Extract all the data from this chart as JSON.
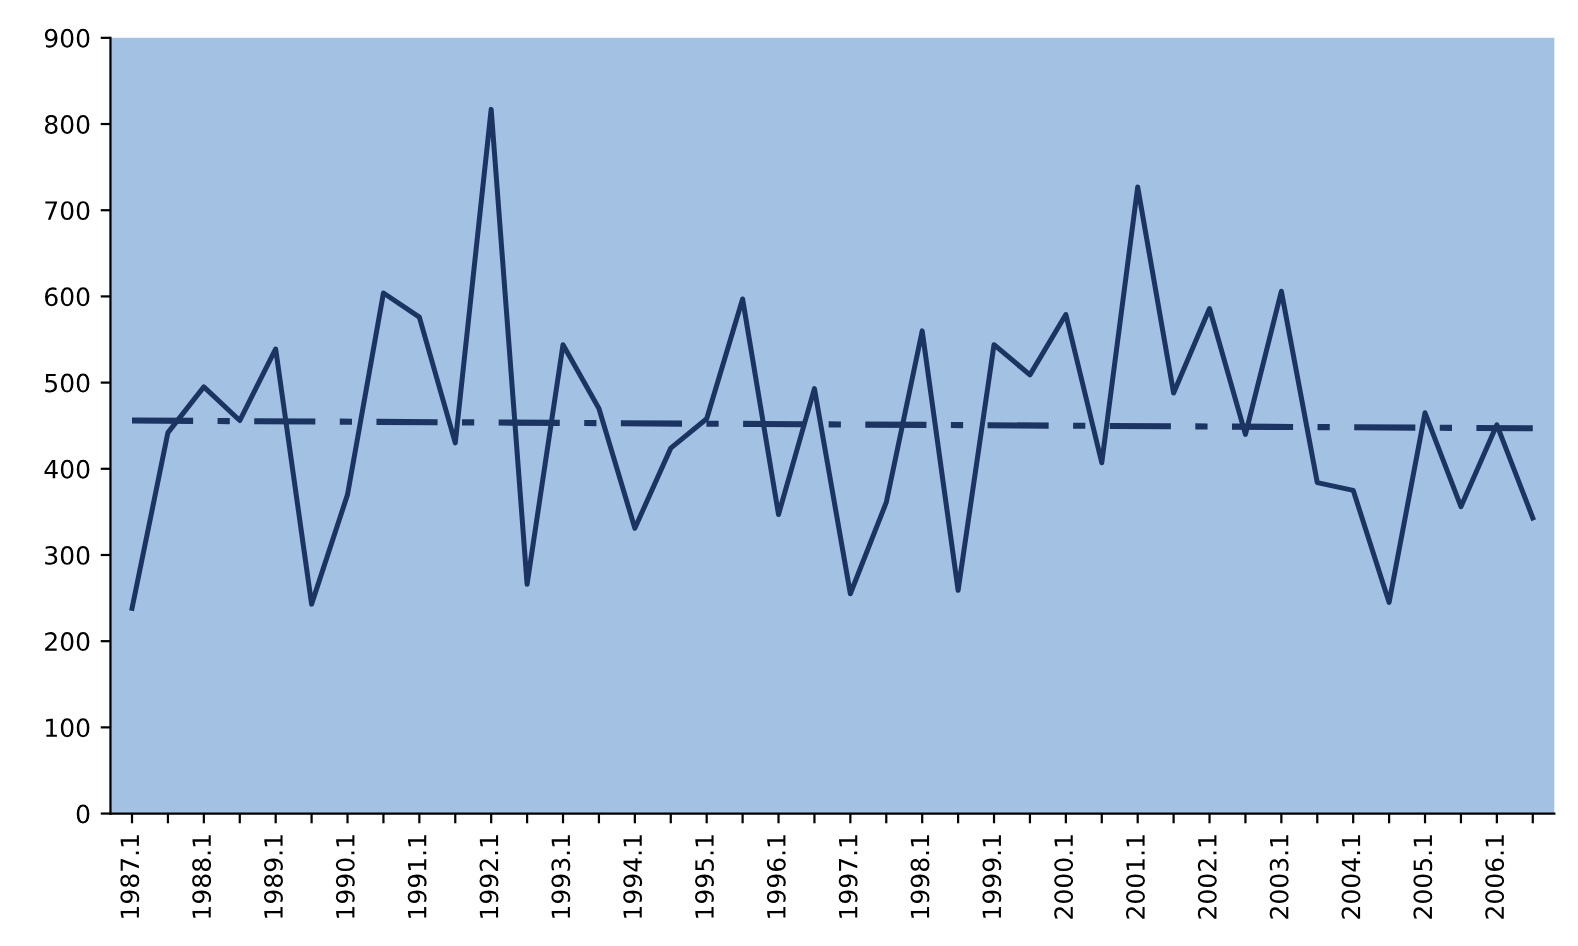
{
  "chart_data": {
    "type": "line",
    "categories": [
      "1987.1",
      null,
      "1988.1",
      null,
      "1989.1",
      null,
      "1990.1",
      null,
      "1991.1",
      null,
      "1992.1",
      null,
      "1993.1",
      null,
      "1994.1",
      null,
      "1995.1",
      null,
      "1996.1",
      null,
      "1997.1",
      null,
      "1998.1",
      null,
      "1999.1",
      null,
      "2000.1",
      null,
      "2001.1",
      null,
      "2002.1",
      null,
      "2003.1",
      null,
      "2004.1",
      null,
      "2005.1",
      null,
      "2006.1",
      null
    ],
    "series": [
      {
        "color": "#1c3461",
        "line_style": "solid",
        "values": [
          238,
          442,
          495,
          456,
          539,
          243,
          370,
          604,
          576,
          430,
          817,
          266,
          544,
          470,
          331,
          424,
          458,
          597,
          347,
          493,
          255,
          361,
          560,
          259,
          544,
          509,
          579,
          407,
          727,
          488,
          586,
          440,
          606,
          384,
          375,
          245,
          465,
          356,
          451,
          343
        ]
      },
      {
        "color": "#1c3461",
        "line_style": "dashdot",
        "values": [
          456,
          null,
          null,
          null,
          null,
          null,
          null,
          null,
          null,
          null,
          null,
          null,
          null,
          null,
          null,
          null,
          null,
          null,
          null,
          null,
          null,
          null,
          null,
          null,
          null,
          null,
          null,
          null,
          null,
          null,
          null,
          null,
          null,
          null,
          null,
          null,
          null,
          null,
          null,
          447
        ]
      }
    ],
    "ylim": [
      0,
      900
    ],
    "yticks": [
      0,
      100,
      200,
      300,
      400,
      500,
      600,
      700,
      800,
      900
    ],
    "grid": false,
    "legend": false,
    "marker": "none"
  }
}
